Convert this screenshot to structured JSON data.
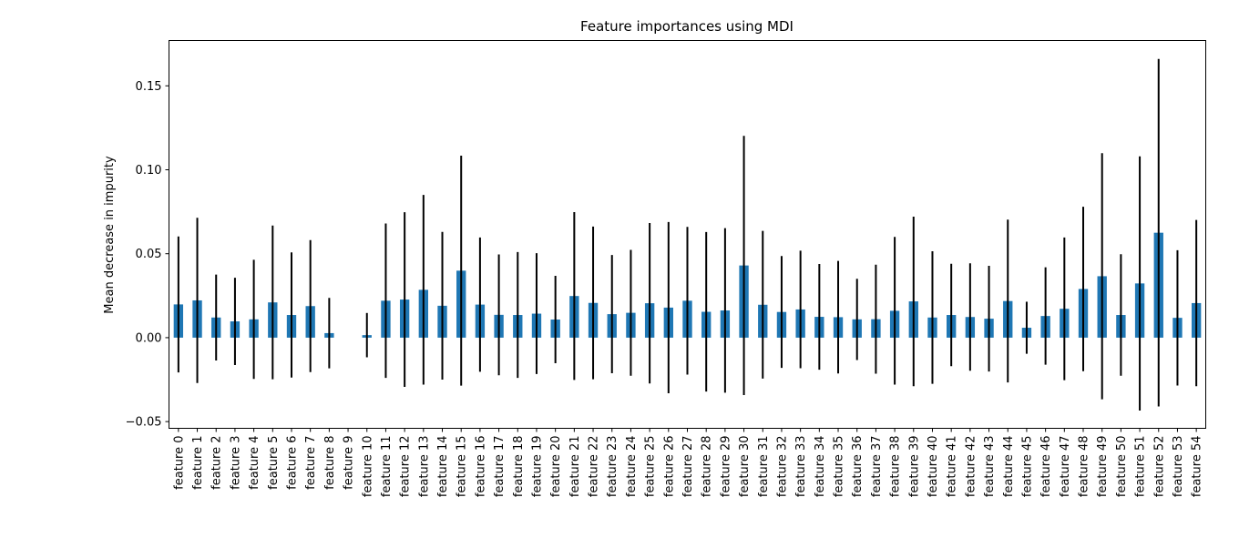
{
  "chart_data": {
    "type": "bar",
    "title": "Feature importances using MDI",
    "ylabel": "Mean decrease in impurity",
    "xlabel": "",
    "ylim": [
      -0.054,
      0.177
    ],
    "yticks": [
      "0.15",
      "0.10",
      "0.05",
      "0.00",
      "−0.05"
    ],
    "ytick_values": [
      0.15,
      0.1,
      0.05,
      0.0,
      -0.05
    ],
    "grid": false,
    "categories": [
      "feature 0",
      "feature 1",
      "feature 2",
      "feature 3",
      "feature 4",
      "feature 5",
      "feature 6",
      "feature 7",
      "feature 8",
      "feature 9",
      "feature 10",
      "feature 11",
      "feature 12",
      "feature 13",
      "feature 14",
      "feature 15",
      "feature 16",
      "feature 17",
      "feature 18",
      "feature 19",
      "feature 20",
      "feature 21",
      "feature 22",
      "feature 23",
      "feature 24",
      "feature 25",
      "feature 26",
      "feature 27",
      "feature 28",
      "feature 29",
      "feature 30",
      "feature 31",
      "feature 32",
      "feature 33",
      "feature 34",
      "feature 35",
      "feature 36",
      "feature 37",
      "feature 38",
      "feature 39",
      "feature 40",
      "feature 41",
      "feature 42",
      "feature 43",
      "feature 44",
      "feature 45",
      "feature 46",
      "feature 47",
      "feature 48",
      "feature 49",
      "feature 50",
      "feature 51",
      "feature 52",
      "feature 53",
      "feature 54"
    ],
    "values": [
      0.0198,
      0.0222,
      0.012,
      0.0097,
      0.0109,
      0.021,
      0.0135,
      0.0188,
      0.0027,
      0.0,
      0.0015,
      0.022,
      0.0227,
      0.0285,
      0.019,
      0.0399,
      0.0197,
      0.0136,
      0.0135,
      0.0143,
      0.0108,
      0.0248,
      0.0207,
      0.014,
      0.0148,
      0.0205,
      0.0179,
      0.022,
      0.0154,
      0.0162,
      0.043,
      0.0196,
      0.0153,
      0.0168,
      0.0124,
      0.0122,
      0.0109,
      0.011,
      0.016,
      0.0216,
      0.012,
      0.0135,
      0.0123,
      0.0113,
      0.0218,
      0.0059,
      0.0129,
      0.0172,
      0.029,
      0.0366,
      0.0135,
      0.0323,
      0.0625,
      0.0118,
      0.0206
    ],
    "errors": [
      0.0405,
      0.0492,
      0.0256,
      0.026,
      0.0355,
      0.0458,
      0.0373,
      0.0393,
      0.021,
      0.0,
      0.0132,
      0.046,
      0.052,
      0.0565,
      0.044,
      0.0685,
      0.04,
      0.036,
      0.0375,
      0.036,
      0.026,
      0.05,
      0.0455,
      0.0352,
      0.0375,
      0.0478,
      0.051,
      0.044,
      0.0475,
      0.049,
      0.0772,
      0.044,
      0.0333,
      0.035,
      0.0315,
      0.0335,
      0.0242,
      0.0325,
      0.044,
      0.0505,
      0.0395,
      0.0305,
      0.032,
      0.0315,
      0.0485,
      0.0155,
      0.029,
      0.0425,
      0.049,
      0.0733,
      0.0362,
      0.0757,
      0.1035,
      0.0403,
      0.0495
    ],
    "bar_color": "#1f77b4",
    "error_color": "#000000"
  }
}
